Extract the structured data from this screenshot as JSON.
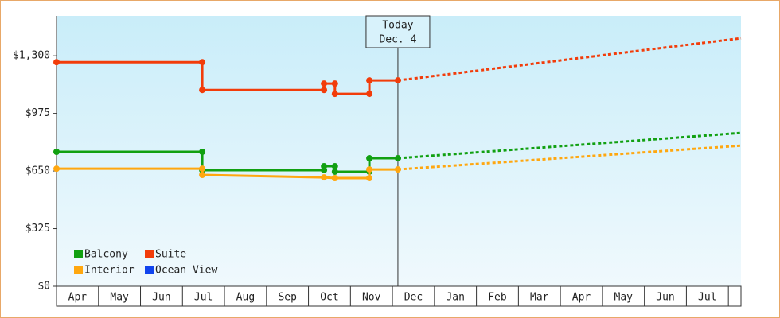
{
  "chart_data": {
    "type": "line",
    "categories": [
      "Apr",
      "May",
      "Jun",
      "Jul",
      "Aug",
      "Sep",
      "Oct",
      "Nov",
      "Dec",
      "Jan",
      "Feb",
      "Mar",
      "Apr",
      "May",
      "Jun",
      "Jul"
    ],
    "xlim": [
      0,
      16.3
    ],
    "ylim": [
      0,
      1525
    ],
    "yticks": [
      {
        "value": 0,
        "label": "$0"
      },
      {
        "value": 325,
        "label": "$325"
      },
      {
        "value": 650,
        "label": "$650"
      },
      {
        "value": 975,
        "label": "$975"
      },
      {
        "value": 1300,
        "label": "$1,300"
      }
    ],
    "annotation": {
      "title": "Today",
      "date": "Dec. 4",
      "x": 8.13
    },
    "series": [
      {
        "name": "Balcony",
        "color": "#11a011",
        "x": [
          0,
          3.47,
          3.47,
          6.37,
          6.37,
          6.63,
          6.63,
          7.45,
          7.45,
          8.13
        ],
        "values": [
          758,
          758,
          655,
          655,
          677,
          677,
          646,
          646,
          722,
          722
        ],
        "forecast_x": [
          8.13,
          16.3
        ],
        "forecast_values": [
          722,
          865
        ]
      },
      {
        "name": "Suite",
        "color": "#f23c0a",
        "x": [
          0,
          3.47,
          3.47,
          6.37,
          6.37,
          6.63,
          6.63,
          7.45,
          7.45,
          8.13
        ],
        "values": [
          1264,
          1264,
          1107,
          1107,
          1143,
          1143,
          1085,
          1085,
          1161,
          1161
        ],
        "forecast_x": [
          8.13,
          16.3
        ],
        "forecast_values": [
          1161,
          1399
        ]
      },
      {
        "name": "Interior",
        "color": "#ffa70f",
        "x": [
          0,
          3.47,
          3.47,
          6.37,
          6.63,
          7.45,
          7.45,
          8.13
        ],
        "values": [
          663,
          663,
          628,
          614,
          610,
          610,
          659,
          659
        ],
        "forecast_x": [
          8.13,
          16.3
        ],
        "forecast_values": [
          659,
          793
        ]
      },
      {
        "name": "Ocean View",
        "color": "#1144ee",
        "x": [],
        "values": [],
        "forecast_x": [],
        "forecast_values": []
      }
    ]
  }
}
